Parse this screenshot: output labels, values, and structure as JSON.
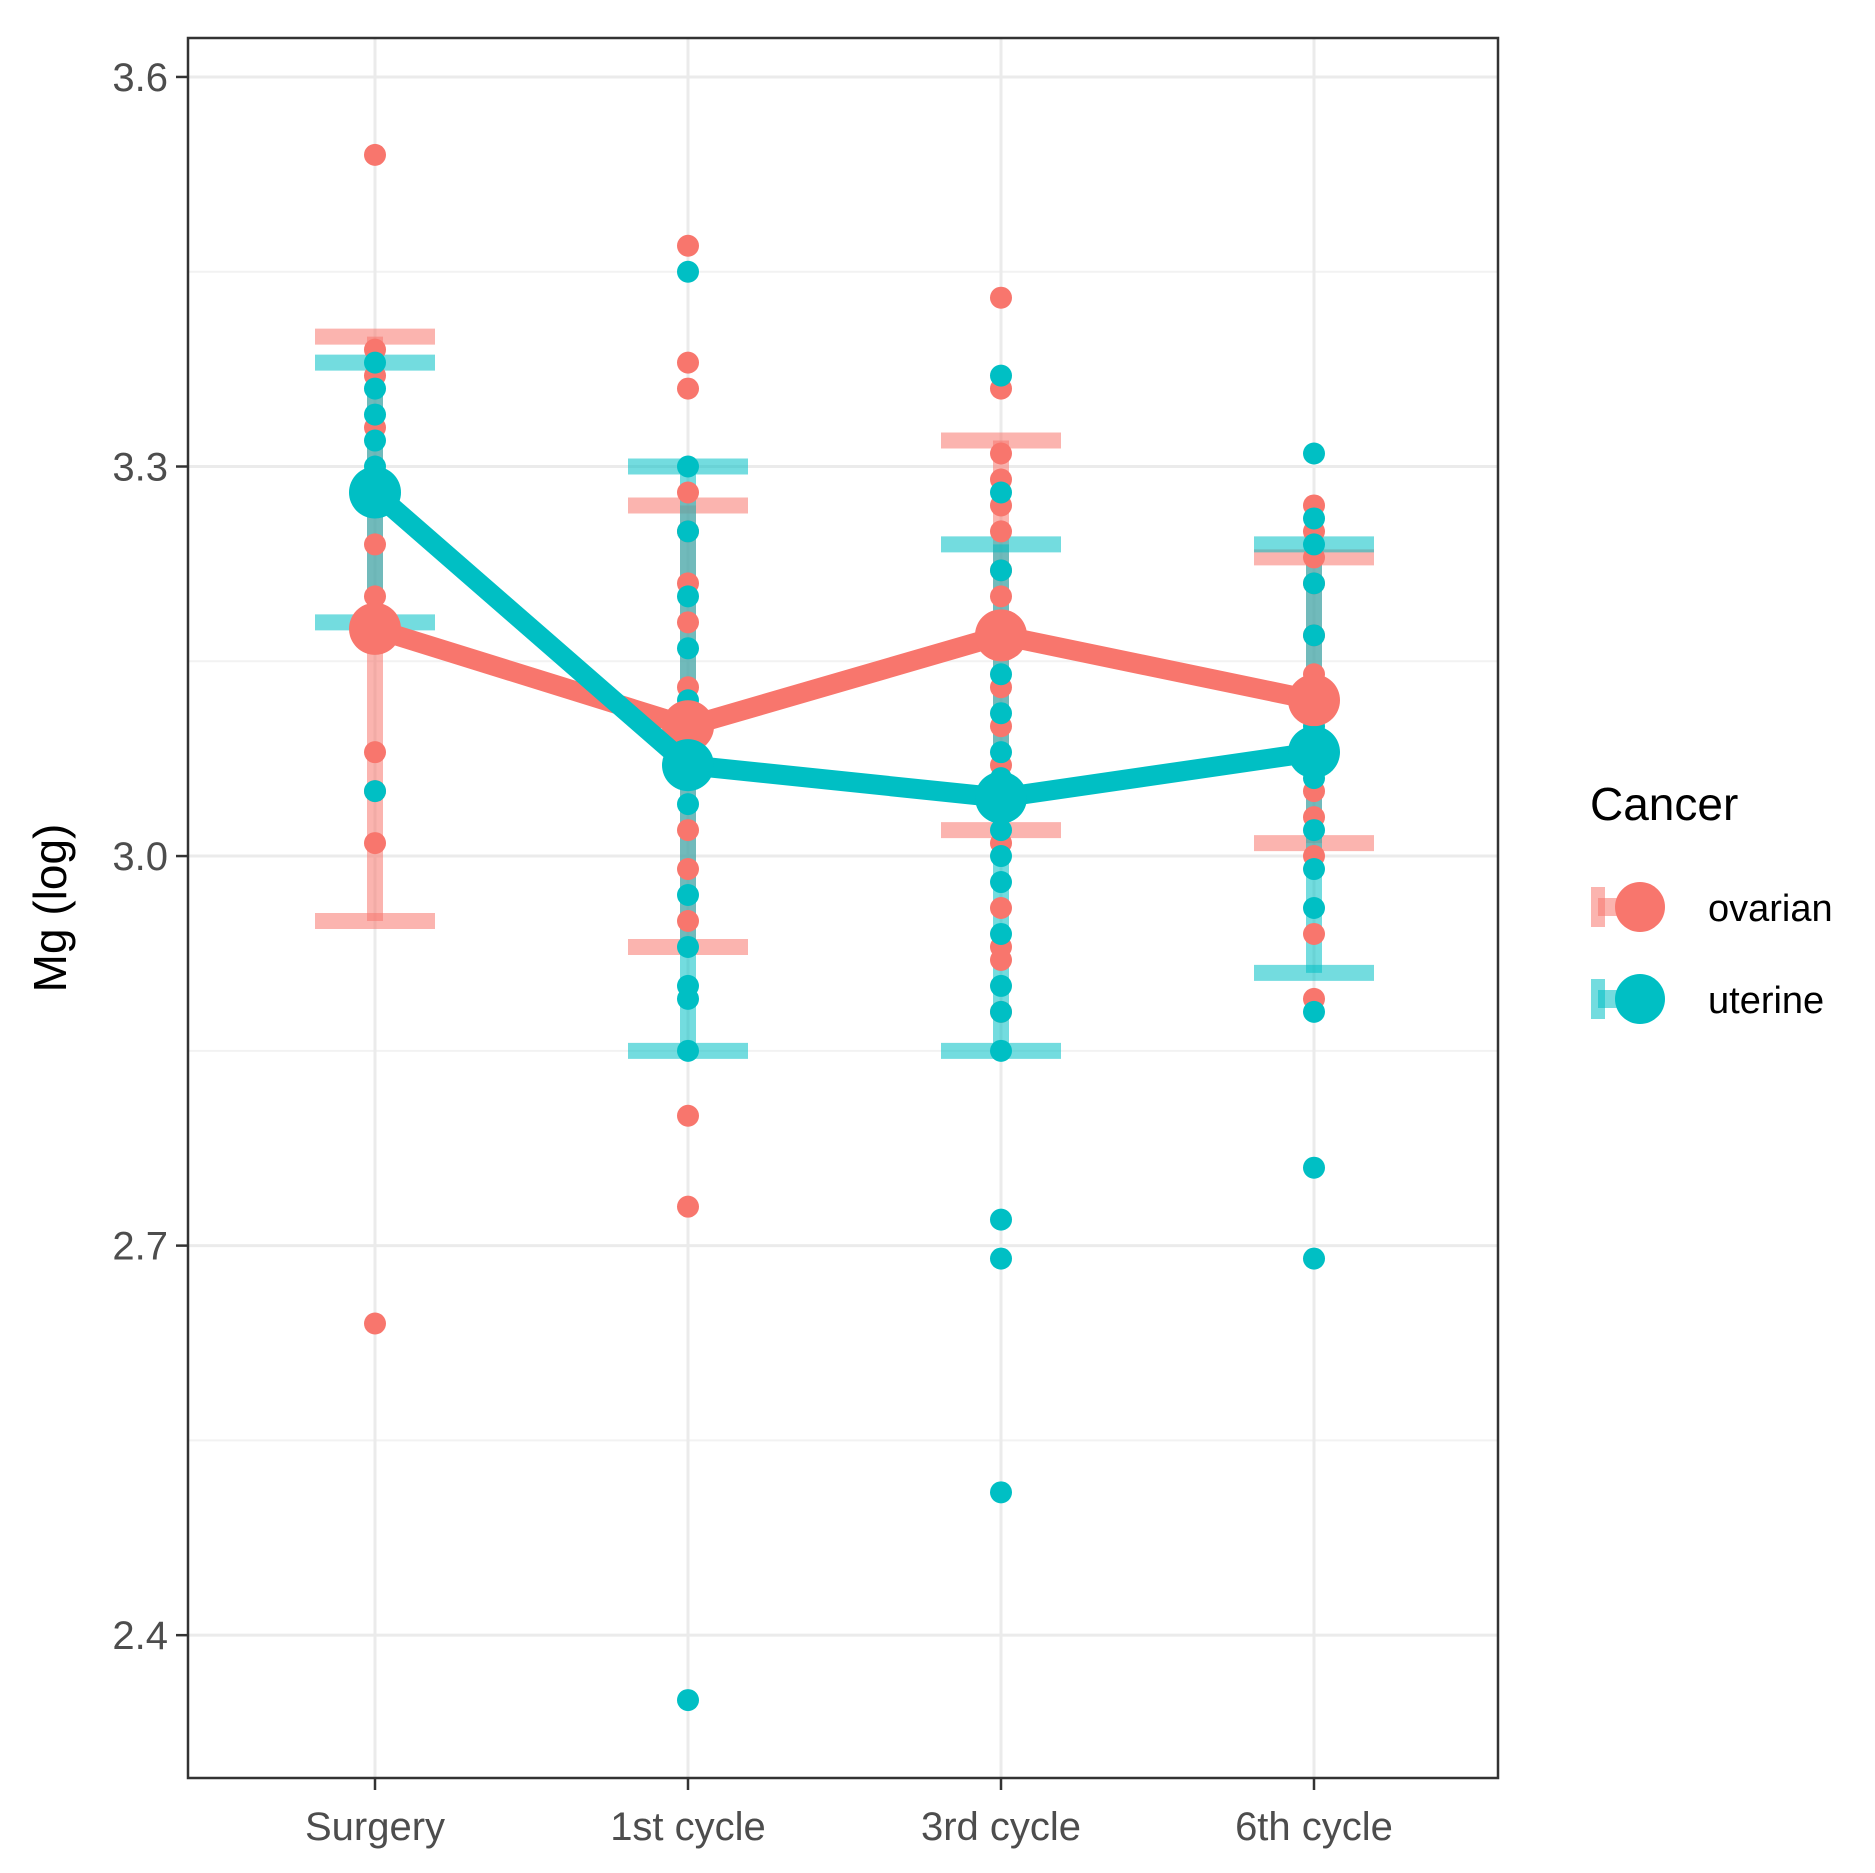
{
  "chart_data": {
    "type": "line",
    "title": "",
    "xlabel": "",
    "ylabel": "Mg (log)",
    "categories": [
      "Surgery",
      "1st cycle",
      "3rd cycle",
      "6th cycle"
    ],
    "ylim": [
      2.29,
      3.63
    ],
    "yticks": [
      2.4,
      2.7,
      3.0,
      3.3,
      3.6
    ],
    "ytick_labels": [
      "2.4",
      "2.7",
      "3.0",
      "3.3",
      "3.6"
    ],
    "grid": true,
    "legend": {
      "title": "Cancer",
      "position": "right",
      "entries": [
        {
          "label": "ovarian",
          "series": "ovarian"
        },
        {
          "label": "uterine",
          "series": "uterine"
        }
      ]
    },
    "series": [
      {
        "name": "ovarian",
        "color": "#F8766D",
        "means": [
          3.175,
          3.1,
          3.17,
          3.12
        ],
        "error_low": [
          2.95,
          2.93,
          3.02,
          3.01
        ],
        "error_high": [
          3.4,
          3.27,
          3.32,
          3.23
        ],
        "points": [
          [
            3.54,
            3.39,
            3.37,
            3.33,
            3.28,
            3.24,
            3.2,
            3.08,
            3.05,
            3.01,
            2.64
          ],
          [
            3.47,
            3.38,
            3.36,
            3.28,
            3.25,
            3.21,
            3.18,
            3.13,
            3.1,
            3.06,
            3.02,
            2.99,
            2.95,
            2.8,
            2.73
          ],
          [
            3.43,
            3.36,
            3.31,
            3.29,
            3.27,
            3.25,
            3.22,
            3.2,
            3.13,
            3.1,
            3.07,
            3.01,
            2.96,
            2.93,
            2.92,
            2.88
          ],
          [
            3.27,
            3.25,
            3.23,
            3.21,
            3.17,
            3.14,
            3.12,
            3.08,
            3.05,
            3.03,
            3.0,
            2.94,
            2.89
          ]
        ]
      },
      {
        "name": "uterine",
        "color": "#00BFC4",
        "means": [
          3.28,
          3.07,
          3.045,
          3.08
        ],
        "error_low": [
          3.18,
          2.85,
          2.85,
          2.91
        ],
        "error_high": [
          3.38,
          3.3,
          3.24,
          3.24
        ],
        "points": [
          [
            3.38,
            3.36,
            3.34,
            3.32,
            3.3,
            3.05
          ],
          [
            3.45,
            3.3,
            3.25,
            3.2,
            3.16,
            3.12,
            3.08,
            3.04,
            2.97,
            2.93,
            2.9,
            2.89,
            2.85,
            2.35
          ],
          [
            3.37,
            3.28,
            3.22,
            3.18,
            3.14,
            3.11,
            3.08,
            3.06,
            3.02,
            3.0,
            2.98,
            2.94,
            2.9,
            2.88,
            2.85,
            2.72,
            2.69,
            2.51
          ],
          [
            3.31,
            3.26,
            3.24,
            3.21,
            3.17,
            3.13,
            3.1,
            3.06,
            3.02,
            2.99,
            2.96,
            2.88,
            2.76,
            2.69
          ]
        ]
      }
    ]
  }
}
